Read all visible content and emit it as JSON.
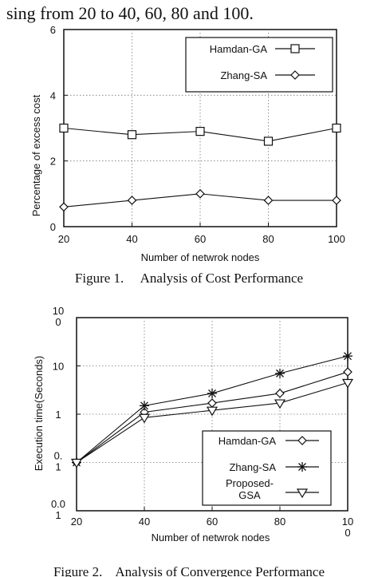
{
  "top_text": "sing from 20 to 40, 60, 80 and 100.",
  "bottom_text": "Figure 2.    Analysis of Convergence Performance",
  "colors": {
    "ink": "#111111",
    "grid": "#777777"
  },
  "chart_data": [
    {
      "type": "line",
      "caption": "Figure 1.     Analysis of Cost Performance",
      "xlabel": "Number of netwrok nodes",
      "ylabel": "Percentage of excess cost",
      "x": [
        20,
        40,
        60,
        80,
        100
      ],
      "x_ticks": [
        "20",
        "40",
        "60",
        "80",
        "100"
      ],
      "y_ticks": [
        "0",
        "2",
        "4",
        "6"
      ],
      "ylim": [
        0,
        6
      ],
      "grid": true,
      "legend_position": "top-right",
      "series": [
        {
          "name": "Hamdan-GA",
          "marker": "square",
          "values": [
            3.0,
            2.8,
            2.9,
            2.6,
            3.0
          ]
        },
        {
          "name": "Zhang-SA",
          "marker": "diamond",
          "values": [
            0.6,
            0.8,
            1.0,
            0.8,
            0.8
          ]
        }
      ]
    },
    {
      "type": "line",
      "caption": "",
      "xlabel": "Number of netwrok nodes",
      "ylabel": "Execution time(Seconds)",
      "x": [
        20,
        40,
        60,
        80,
        100
      ],
      "x_ticks": [
        "20",
        "40",
        "60",
        "80",
        "10\n0"
      ],
      "y_ticks": [
        "0.0\n1",
        "0.\n1",
        "1",
        "10",
        "10\n0"
      ],
      "y_scale": "log",
      "ylim": [
        0.01,
        100
      ],
      "grid": true,
      "legend_position": "bottom-right",
      "series": [
        {
          "name": "Hamdan-GA",
          "marker": "diamond",
          "values": [
            0.1,
            1.1,
            1.7,
            2.7,
            7.5
          ]
        },
        {
          "name": "Zhang-SA",
          "marker": "star",
          "values": [
            0.1,
            1.5,
            2.7,
            7.0,
            16.0
          ]
        },
        {
          "name": "Proposed-\nGSA",
          "marker": "triangle-down",
          "values": [
            0.1,
            0.85,
            1.2,
            1.7,
            4.5
          ]
        }
      ]
    }
  ]
}
